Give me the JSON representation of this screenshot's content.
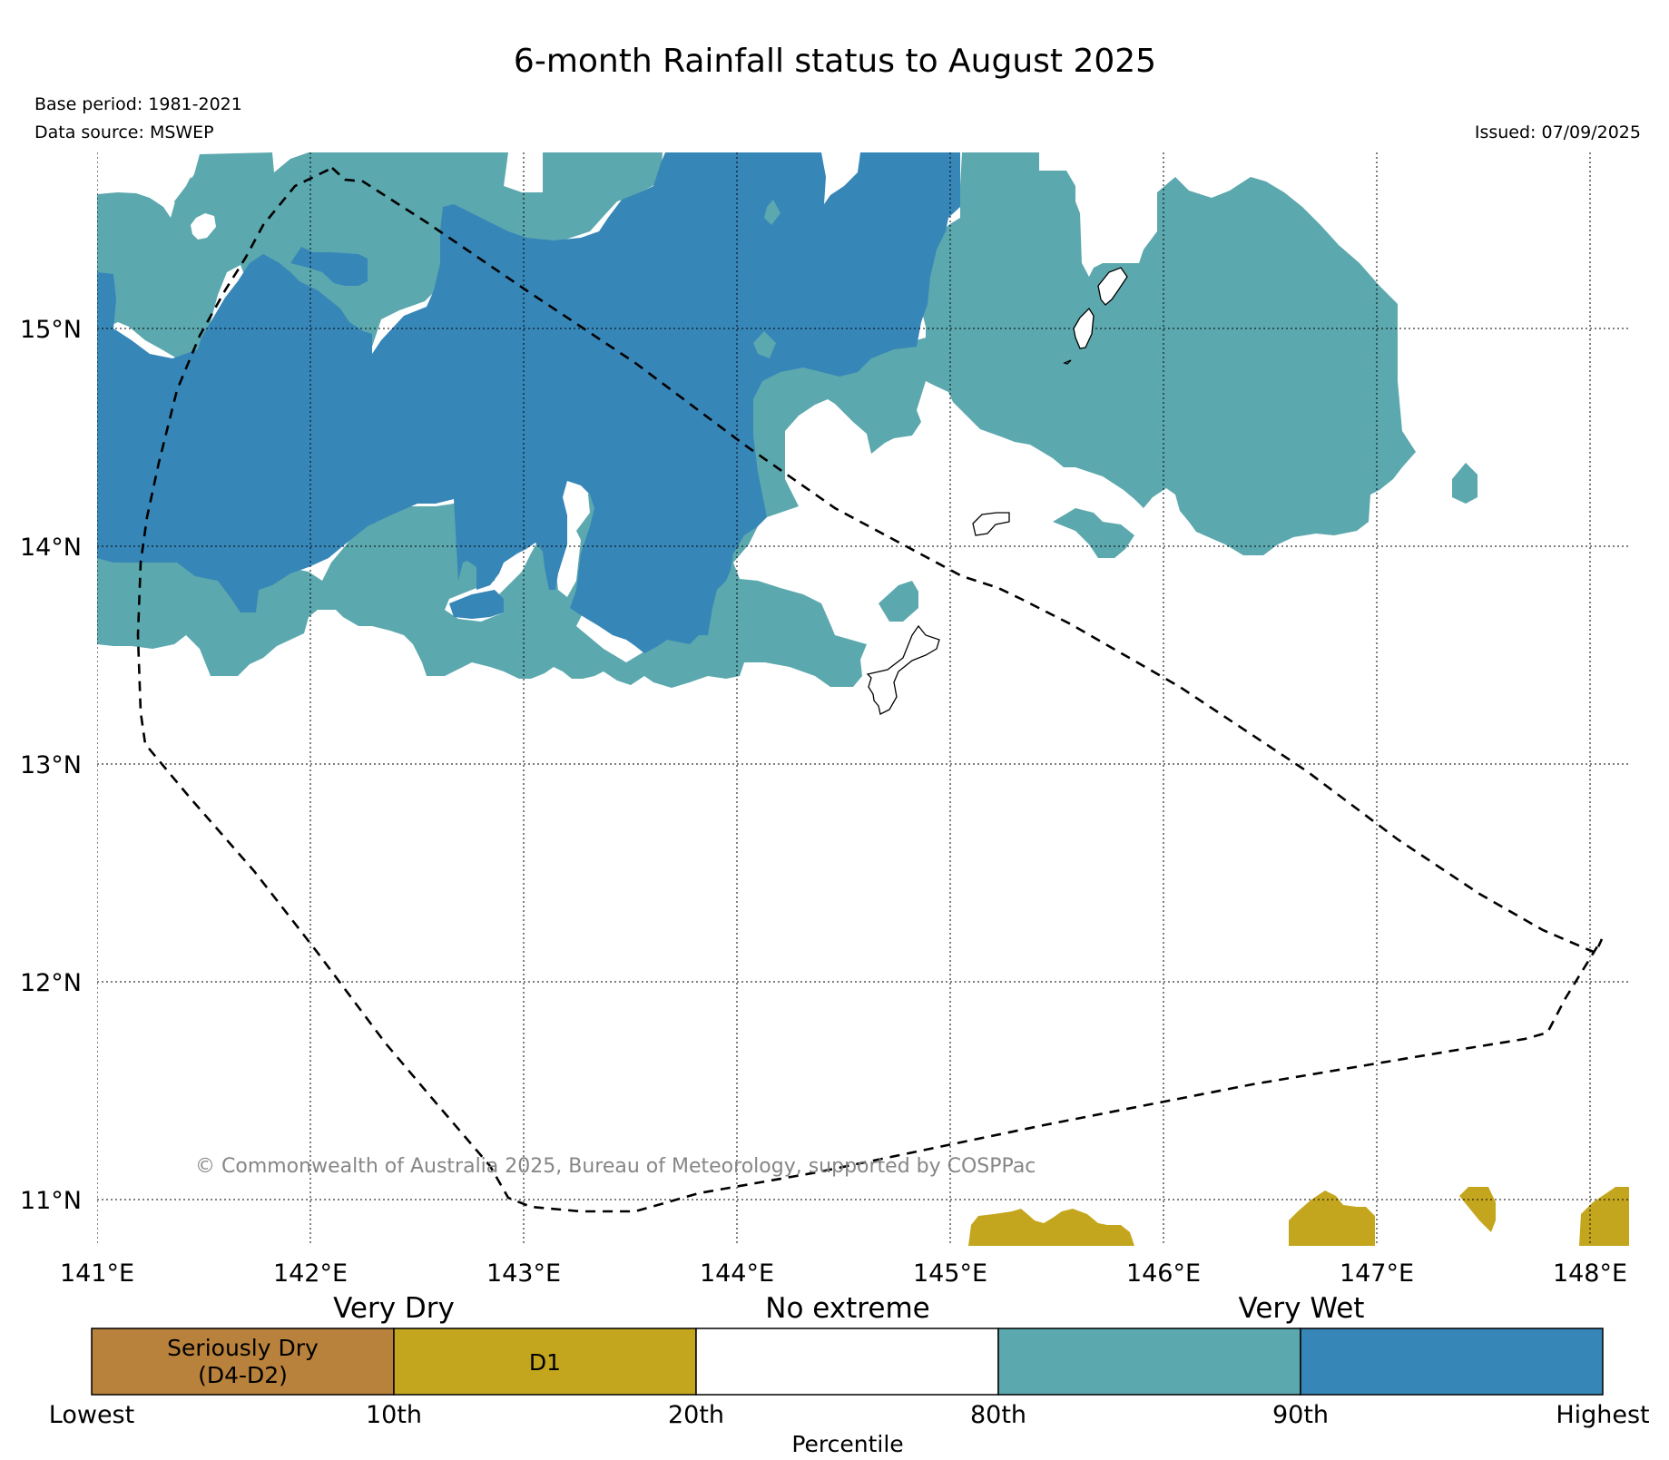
{
  "header": {
    "title": "6-month Rainfall status to August 2025",
    "base_period": "Base period: 1981-2021",
    "data_source": "Data source: MSWEP",
    "issued": "Issued: 07/09/2025"
  },
  "map": {
    "lon_range": [
      141.0,
      148.2
    ],
    "lat_range": [
      10.8,
      15.8
    ],
    "lon_ticks": [
      {
        "value": 141,
        "label": "141°E"
      },
      {
        "value": 142,
        "label": "142°E"
      },
      {
        "value": 143,
        "label": "143°E"
      },
      {
        "value": 144,
        "label": "144°E"
      },
      {
        "value": 145,
        "label": "145°E"
      },
      {
        "value": 146,
        "label": "146°E"
      },
      {
        "value": 147,
        "label": "147°E"
      },
      {
        "value": 148,
        "label": "148°E"
      }
    ],
    "lat_ticks": [
      {
        "value": 15,
        "label": "15°N"
      },
      {
        "value": 14,
        "label": "14°N"
      },
      {
        "value": 13,
        "label": "13°N"
      },
      {
        "value": 12,
        "label": "12°N"
      },
      {
        "value": 11,
        "label": "11°N"
      }
    ],
    "copyright": "© Commonwealth of Australia 2025, Bureau of Meteorology, supported by COSPPac"
  },
  "colors": {
    "seriously_dry": "#b8813c",
    "d1": "#c4a61e",
    "no_extreme": "#ffffff",
    "wet_80_90": "#5ba8ae",
    "very_wet_90": "#3786b8"
  },
  "legend": {
    "group_labels": [
      "Very Dry",
      "No extreme",
      "Very Wet"
    ],
    "boxes": [
      {
        "line1": "Seriously Dry",
        "line2": "(D4-D2)",
        "color_key": "seriously_dry"
      },
      {
        "line1": "D1",
        "line2": "",
        "color_key": "d1"
      },
      {
        "line1": "",
        "line2": "",
        "color_key": "no_extreme"
      },
      {
        "line1": "",
        "line2": "",
        "color_key": "wet_80_90"
      },
      {
        "line1": "",
        "line2": "",
        "color_key": "very_wet_90"
      }
    ],
    "ticks": [
      "Lowest",
      "10th",
      "20th",
      "80th",
      "90th",
      "Highest"
    ],
    "axis_label": "Percentile"
  }
}
